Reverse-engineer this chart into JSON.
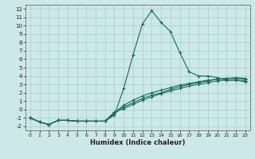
{
  "xlabel": "Humidex (Indice chaleur)",
  "bg_color": "#cce8e8",
  "grid_color": "#aacccc",
  "line_color": "#1a6b5a",
  "xlim": [
    -0.5,
    23.5
  ],
  "ylim": [
    -2.5,
    12.5
  ],
  "xticks": [
    0,
    1,
    2,
    3,
    4,
    5,
    6,
    7,
    8,
    9,
    10,
    11,
    12,
    13,
    14,
    15,
    16,
    17,
    18,
    19,
    20,
    21,
    22,
    23
  ],
  "yticks": [
    -2,
    -1,
    0,
    1,
    2,
    3,
    4,
    5,
    6,
    7,
    8,
    9,
    10,
    11,
    12
  ],
  "curve1_x": [
    0,
    1,
    2,
    3,
    4,
    5,
    6,
    7,
    8,
    9,
    10,
    11,
    12,
    13,
    14,
    15,
    16,
    17,
    18,
    19,
    20,
    21,
    22,
    23
  ],
  "curve1_y": [
    -1.0,
    -1.5,
    -1.8,
    -1.3,
    -1.3,
    -1.4,
    -1.4,
    -1.4,
    -1.4,
    -0.7,
    2.5,
    6.5,
    10.2,
    11.8,
    10.4,
    9.3,
    6.8,
    4.5,
    4.0,
    4.0,
    3.8,
    3.5,
    3.5,
    3.3
  ],
  "curve2_x": [
    0,
    1,
    2,
    3,
    4,
    5,
    6,
    7,
    8,
    9,
    10,
    11,
    12,
    13,
    14,
    15,
    16,
    17,
    18,
    19,
    20,
    21,
    22,
    23
  ],
  "curve2_y": [
    -1.0,
    -1.5,
    -1.8,
    -1.3,
    -1.3,
    -1.4,
    -1.4,
    -1.4,
    -1.4,
    -0.5,
    0.3,
    0.8,
    1.3,
    1.7,
    2.0,
    2.4,
    2.7,
    3.0,
    3.2,
    3.4,
    3.6,
    3.7,
    3.7,
    3.6
  ],
  "curve3_x": [
    0,
    1,
    2,
    3,
    4,
    5,
    6,
    7,
    8,
    9,
    10,
    11,
    12,
    13,
    14,
    15,
    16,
    17,
    18,
    19,
    20,
    21,
    22,
    23
  ],
  "curve3_y": [
    -1.0,
    -1.5,
    -1.8,
    -1.3,
    -1.3,
    -1.4,
    -1.4,
    -1.4,
    -1.4,
    -0.3,
    0.1,
    0.6,
    1.1,
    1.5,
    1.9,
    2.2,
    2.5,
    2.8,
    3.0,
    3.2,
    3.4,
    3.5,
    3.5,
    3.4
  ],
  "curve4_x": [
    0,
    1,
    2,
    3,
    4,
    5,
    6,
    7,
    8,
    9,
    10,
    11,
    12,
    13,
    14,
    15,
    16,
    17,
    18,
    19,
    20,
    21,
    22,
    23
  ],
  "curve4_y": [
    -1.0,
    -1.5,
    -1.8,
    -1.3,
    -1.3,
    -1.4,
    -1.4,
    -1.4,
    -1.4,
    -0.4,
    0.5,
    1.1,
    1.6,
    2.0,
    2.3,
    2.6,
    2.9,
    3.1,
    3.3,
    3.5,
    3.6,
    3.7,
    3.8,
    3.7
  ]
}
